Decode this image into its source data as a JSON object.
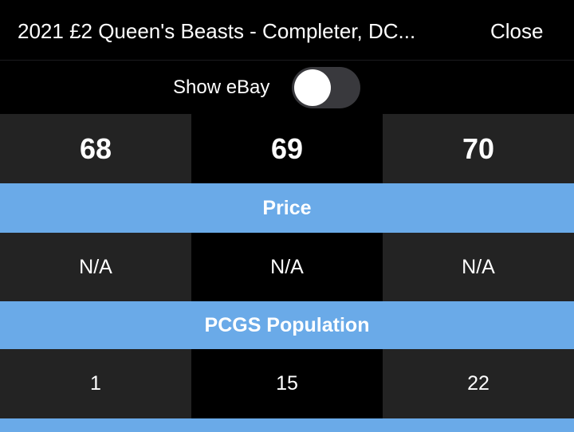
{
  "header": {
    "title": "2021 £2 Queen's Beasts - Completer, DC...",
    "close_label": "Close"
  },
  "toggle": {
    "label": "Show eBay",
    "on": false
  },
  "grades": [
    "68",
    "69",
    "70"
  ],
  "sections": [
    {
      "title": "Price",
      "values": [
        "N/A",
        "N/A",
        "N/A"
      ]
    },
    {
      "title": "PCGS Population",
      "values": [
        "1",
        "15",
        "22"
      ]
    }
  ],
  "colors": {
    "section_header": "#6aaae8",
    "cell_dark": "#232323",
    "background": "#000000"
  }
}
